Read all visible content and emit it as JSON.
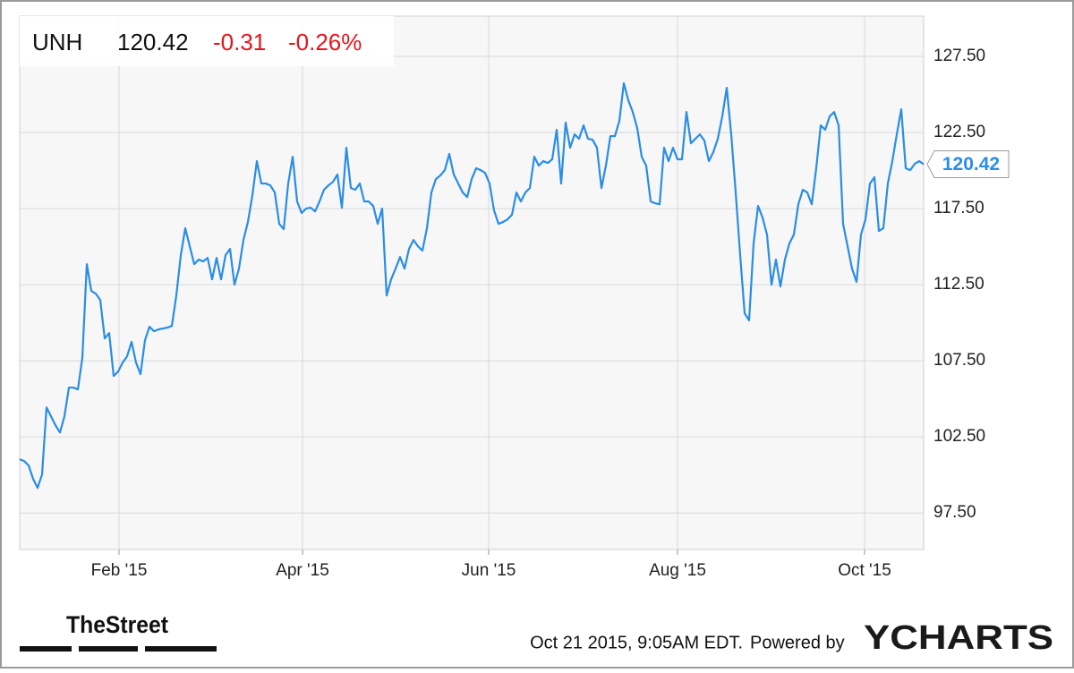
{
  "chart_data": {
    "type": "line",
    "header": {
      "ticker": "UNH",
      "price": "120.42",
      "change": "-0.31",
      "change_pct": "-0.26%"
    },
    "footer": {
      "brand": "TheStreet",
      "timestamp": "Oct 21 2015, 9:05AM EDT.",
      "powered_by": "Powered by",
      "provider": "YCHARTS"
    },
    "series": [
      {
        "name": "UNH",
        "color": "#2a8de6",
        "values": [
          101.03,
          100.91,
          100.62,
          99.74,
          99.15,
          100.03,
          104.44,
          103.85,
          103.26,
          102.79,
          103.85,
          105.74,
          105.74,
          105.62,
          107.68,
          113.85,
          112.09,
          111.91,
          111.5,
          108.97,
          109.32,
          106.5,
          106.79,
          107.38,
          107.79,
          108.74,
          107.38,
          106.62,
          108.85,
          109.74,
          109.44,
          109.56,
          109.62,
          109.68,
          109.79,
          111.79,
          114.44,
          116.21,
          115.03,
          113.85,
          114.15,
          114.03,
          114.26,
          112.85,
          114.26,
          112.85,
          114.44,
          114.85,
          112.5,
          113.56,
          115.44,
          116.62,
          118.38,
          120.62,
          119.15,
          119.15,
          119.03,
          118.56,
          116.5,
          116.15,
          119.15,
          120.91,
          117.97,
          117.21,
          117.5,
          117.56,
          117.32,
          117.97,
          118.74,
          119.03,
          119.26,
          119.74,
          117.56,
          121.5,
          118.85,
          118.74,
          119.15,
          117.97,
          117.97,
          117.68,
          116.5,
          117.5,
          111.79,
          112.85,
          113.56,
          114.32,
          113.56,
          114.85,
          115.44,
          115.03,
          114.74,
          116.21,
          118.56,
          119.44,
          119.68,
          120.03,
          121.09,
          119.74,
          119.15,
          118.56,
          118.26,
          119.44,
          120.15,
          120.03,
          119.85,
          119.15,
          117.38,
          116.5,
          116.62,
          116.79,
          117.09,
          118.56,
          117.97,
          118.56,
          118.85,
          120.91,
          120.32,
          120.62,
          120.5,
          120.74,
          122.68,
          119.15,
          123.15,
          121.5,
          122.38,
          122.09,
          122.97,
          122.09,
          122.03,
          121.5,
          118.85,
          120.32,
          122.26,
          122.26,
          123.26,
          125.74,
          124.62,
          123.85,
          122.79,
          120.91,
          120.32,
          117.97,
          117.85,
          117.79,
          121.5,
          120.62,
          121.5,
          120.74,
          120.74,
          123.85,
          121.79,
          122.09,
          122.38,
          121.97,
          120.62,
          121.21,
          122.09,
          123.56,
          125.44,
          122.38,
          118.56,
          114.44,
          110.62,
          110.15,
          115.21,
          117.68,
          116.91,
          115.79,
          112.5,
          114.15,
          112.38,
          114.15,
          115.21,
          115.79,
          117.79,
          118.74,
          118.56,
          117.79,
          120.15,
          122.97,
          122.68,
          123.56,
          123.85,
          122.97,
          116.5,
          115.03,
          113.56,
          112.68,
          115.79,
          116.79,
          119.15,
          119.56,
          116.03,
          116.21,
          119.15,
          120.62,
          122.38,
          124.03,
          120.15,
          120.03,
          120.44,
          120.62,
          120.42
        ]
      }
    ],
    "xlim": [
      0,
      202
    ],
    "xticks": [
      {
        "value": 22.2,
        "label": "Feb '15"
      },
      {
        "value": 63.2,
        "label": "Apr '15"
      },
      {
        "value": 104.8,
        "label": "Jun '15"
      },
      {
        "value": 147,
        "label": "Aug '15"
      },
      {
        "value": 188.8,
        "label": "Oct '15"
      }
    ],
    "ylim": [
      95.1,
      130.15
    ],
    "yticks": [
      {
        "value": 97.5,
        "label": "97.50"
      },
      {
        "value": 102.5,
        "label": "102.50"
      },
      {
        "value": 107.5,
        "label": "107.50"
      },
      {
        "value": 112.5,
        "label": "112.50"
      },
      {
        "value": 117.5,
        "label": "117.50"
      },
      {
        "value": 122.5,
        "label": "122.50"
      },
      {
        "value": 127.5,
        "label": "127.50"
      }
    ],
    "grid": true
  }
}
